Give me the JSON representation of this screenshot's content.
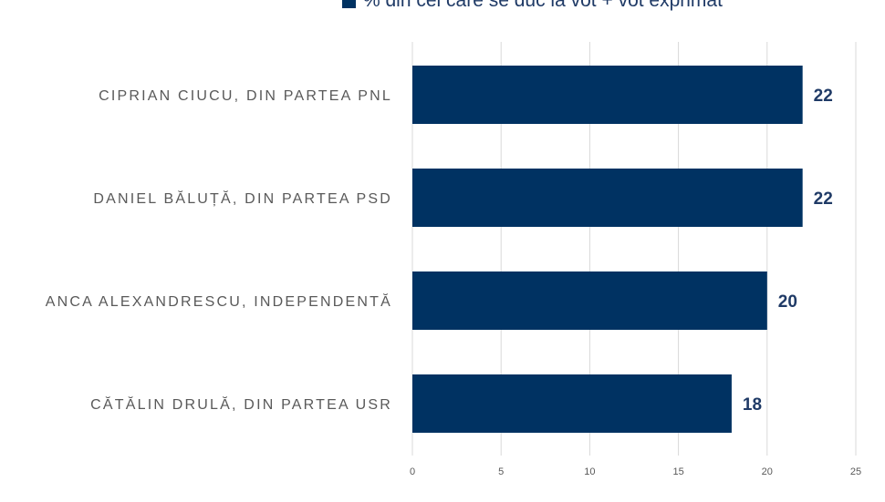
{
  "chart_data": {
    "type": "bar",
    "orientation": "horizontal",
    "categories": [
      "CIPRIAN CIUCU, DIN PARTEA PNL",
      "DANIEL BĂLUȚĂ, DIN PARTEA PSD",
      "ANCA ALEXANDRESCU, INDEPENDENTĂ",
      "CĂTĂLIN DRULĂ, DIN PARTEA USR"
    ],
    "series": [
      {
        "name": "% din cei care se duc la vot + vot exprimat",
        "values": [
          22,
          22,
          20,
          18
        ]
      }
    ],
    "xlim": [
      0,
      25
    ],
    "xticks": [
      0,
      5,
      10,
      15,
      20,
      25
    ],
    "grid": "vertical",
    "legend_position": "top",
    "data_labels": true
  },
  "colors": {
    "bar": "#003262",
    "data_label": "#1f3a66",
    "category_label": "#595959",
    "tick_label": "#595959",
    "gridline": "#d9d9d9",
    "background": "#ffffff"
  }
}
